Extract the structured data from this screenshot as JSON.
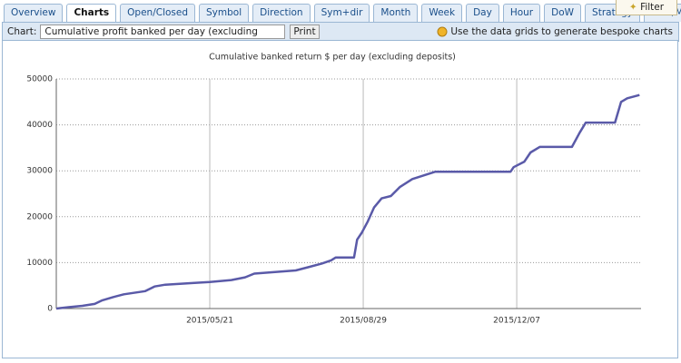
{
  "tabs": [
    {
      "label": "Overview"
    },
    {
      "label": "Charts",
      "active": true
    },
    {
      "label": "Open/Closed"
    },
    {
      "label": "Symbol"
    },
    {
      "label": "Direction"
    },
    {
      "label": "Sym+dir"
    },
    {
      "label": "Month"
    },
    {
      "label": "Week"
    },
    {
      "label": "Day"
    },
    {
      "label": "Hour"
    },
    {
      "label": "DoW"
    },
    {
      "label": "Strategy"
    },
    {
      "label": "MAE/MFE"
    }
  ],
  "filter_button": "Filter",
  "toolbar": {
    "chart_label": "Chart:",
    "chart_select": "Cumulative profit banked per day (excluding deposits)",
    "print_button": "Print",
    "hint": "Use the data grids to generate bespoke charts"
  },
  "chart_data": {
    "type": "line",
    "title": "Cumulative banked return $ per day (excluding deposits)",
    "x": [
      "2015/02/10",
      "2015/02/18",
      "2015/02/27",
      "2015/03/07",
      "2015/03/12",
      "2015/03/19",
      "2015/03/26",
      "2015/04/09",
      "2015/04/15",
      "2015/04/22",
      "2015/05/11",
      "2015/05/21",
      "2015/06/04",
      "2015/06/13",
      "2015/06/19",
      "2015/07/16",
      "2015/07/24",
      "2015/08/02",
      "2015/08/08",
      "2015/08/11",
      "2015/08/23",
      "2015/08/25",
      "2015/08/28",
      "2015/09/01",
      "2015/09/05",
      "2015/09/10",
      "2015/09/16",
      "2015/09/22",
      "2015/09/30",
      "2015/10/15",
      "2015/12/03",
      "2015/12/05",
      "2015/12/12",
      "2015/12/16",
      "2015/12/22",
      "2016/01/12",
      "2016/01/17",
      "2016/01/21",
      "2016/02/09",
      "2016/02/13",
      "2016/02/17",
      "2016/02/25"
    ],
    "values": [
      0,
      300,
      600,
      1000,
      1800,
      2500,
      3100,
      3800,
      4800,
      5200,
      5600,
      5800,
      6200,
      6800,
      7600,
      8300,
      9000,
      9800,
      10500,
      11100,
      11100,
      15000,
      16500,
      19000,
      22000,
      24000,
      24500,
      26500,
      28200,
      29800,
      29800,
      30800,
      32000,
      34000,
      35200,
      35200,
      38300,
      40500,
      40500,
      45000,
      45800,
      46500
    ],
    "color": "#5a5aa8",
    "xlim": [
      "2015/02/10",
      "2016/02/26"
    ],
    "xticks": [
      "2015/05/21",
      "2015/08/29",
      "2015/12/07"
    ],
    "ylim": [
      0,
      50000
    ],
    "yticks": [
      0,
      10000,
      20000,
      30000,
      40000,
      50000
    ],
    "grid": true
  }
}
